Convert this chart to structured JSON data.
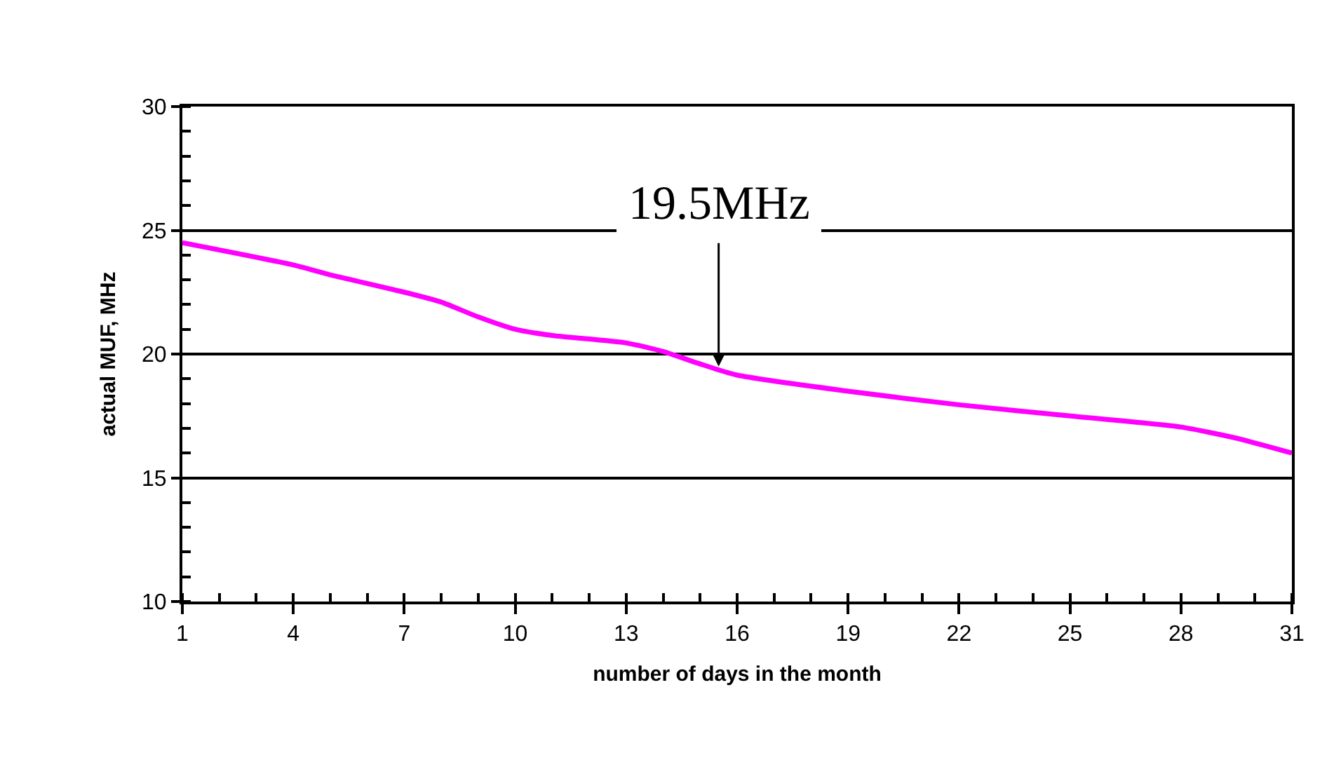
{
  "chart_data": {
    "type": "line",
    "xlabel": "number of days in the month",
    "ylabel": "actual MUF, MHz",
    "x": [
      1,
      4,
      5,
      7,
      8,
      9,
      10,
      11,
      13,
      14,
      15,
      16,
      19,
      22,
      25,
      28,
      29.5,
      31
    ],
    "series": [
      {
        "color": "#ff00ff",
        "values": [
          24.5,
          23.6,
          23.2,
          22.5,
          22.1,
          21.5,
          21.0,
          20.75,
          20.45,
          20.1,
          19.6,
          19.15,
          18.5,
          17.95,
          17.5,
          17.05,
          16.6,
          16.0
        ]
      }
    ],
    "xlim": [
      1,
      31
    ],
    "xticks": [
      1,
      4,
      7,
      10,
      13,
      16,
      19,
      22,
      25,
      28,
      31
    ],
    "ylim": [
      10,
      30
    ],
    "yticks": [
      10,
      15,
      20,
      25,
      30
    ],
    "annotations": [
      {
        "text": "19.5MHz",
        "x": 15.5,
        "y": 19.5
      }
    ],
    "grid": "y",
    "marker": "none",
    "line_style": "solid"
  }
}
